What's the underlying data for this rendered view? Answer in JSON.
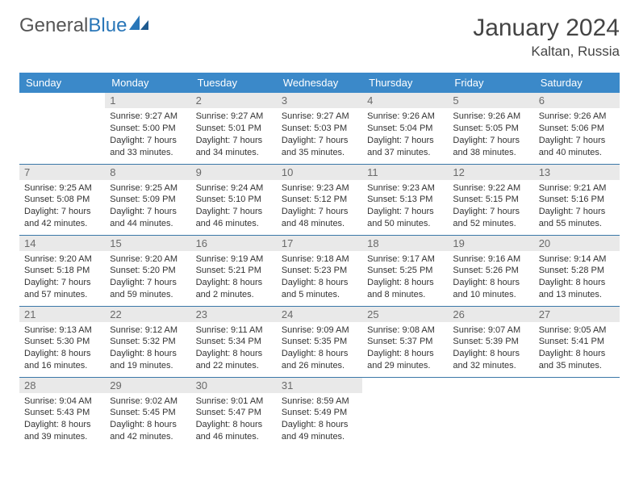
{
  "brand": {
    "part1": "General",
    "part2": "Blue"
  },
  "title": "January 2024",
  "subtitle": "Kaltan, Russia",
  "colors": {
    "header_bg": "#3b89c9",
    "header_text": "#ffffff",
    "daynum_bg": "#e9e9e9",
    "daynum_text": "#6a6a6a",
    "row_border": "#3b78a8",
    "brand_gray": "#555555",
    "brand_blue": "#2976b8",
    "body_text": "#333333",
    "page_bg": "#ffffff"
  },
  "typography": {
    "title_fontsize": 30,
    "subtitle_fontsize": 17,
    "dayheader_fontsize": 13,
    "daynum_fontsize": 13,
    "cell_fontsize": 11
  },
  "dayHeaders": [
    "Sunday",
    "Monday",
    "Tuesday",
    "Wednesday",
    "Thursday",
    "Friday",
    "Saturday"
  ],
  "weeks": [
    [
      {
        "empty": true
      },
      {
        "num": "1",
        "sunrise": "Sunrise: 9:27 AM",
        "sunset": "Sunset: 5:00 PM",
        "daylight1": "Daylight: 7 hours",
        "daylight2": "and 33 minutes."
      },
      {
        "num": "2",
        "sunrise": "Sunrise: 9:27 AM",
        "sunset": "Sunset: 5:01 PM",
        "daylight1": "Daylight: 7 hours",
        "daylight2": "and 34 minutes."
      },
      {
        "num": "3",
        "sunrise": "Sunrise: 9:27 AM",
        "sunset": "Sunset: 5:03 PM",
        "daylight1": "Daylight: 7 hours",
        "daylight2": "and 35 minutes."
      },
      {
        "num": "4",
        "sunrise": "Sunrise: 9:26 AM",
        "sunset": "Sunset: 5:04 PM",
        "daylight1": "Daylight: 7 hours",
        "daylight2": "and 37 minutes."
      },
      {
        "num": "5",
        "sunrise": "Sunrise: 9:26 AM",
        "sunset": "Sunset: 5:05 PM",
        "daylight1": "Daylight: 7 hours",
        "daylight2": "and 38 minutes."
      },
      {
        "num": "6",
        "sunrise": "Sunrise: 9:26 AM",
        "sunset": "Sunset: 5:06 PM",
        "daylight1": "Daylight: 7 hours",
        "daylight2": "and 40 minutes."
      }
    ],
    [
      {
        "num": "7",
        "sunrise": "Sunrise: 9:25 AM",
        "sunset": "Sunset: 5:08 PM",
        "daylight1": "Daylight: 7 hours",
        "daylight2": "and 42 minutes."
      },
      {
        "num": "8",
        "sunrise": "Sunrise: 9:25 AM",
        "sunset": "Sunset: 5:09 PM",
        "daylight1": "Daylight: 7 hours",
        "daylight2": "and 44 minutes."
      },
      {
        "num": "9",
        "sunrise": "Sunrise: 9:24 AM",
        "sunset": "Sunset: 5:10 PM",
        "daylight1": "Daylight: 7 hours",
        "daylight2": "and 46 minutes."
      },
      {
        "num": "10",
        "sunrise": "Sunrise: 9:23 AM",
        "sunset": "Sunset: 5:12 PM",
        "daylight1": "Daylight: 7 hours",
        "daylight2": "and 48 minutes."
      },
      {
        "num": "11",
        "sunrise": "Sunrise: 9:23 AM",
        "sunset": "Sunset: 5:13 PM",
        "daylight1": "Daylight: 7 hours",
        "daylight2": "and 50 minutes."
      },
      {
        "num": "12",
        "sunrise": "Sunrise: 9:22 AM",
        "sunset": "Sunset: 5:15 PM",
        "daylight1": "Daylight: 7 hours",
        "daylight2": "and 52 minutes."
      },
      {
        "num": "13",
        "sunrise": "Sunrise: 9:21 AM",
        "sunset": "Sunset: 5:16 PM",
        "daylight1": "Daylight: 7 hours",
        "daylight2": "and 55 minutes."
      }
    ],
    [
      {
        "num": "14",
        "sunrise": "Sunrise: 9:20 AM",
        "sunset": "Sunset: 5:18 PM",
        "daylight1": "Daylight: 7 hours",
        "daylight2": "and 57 minutes."
      },
      {
        "num": "15",
        "sunrise": "Sunrise: 9:20 AM",
        "sunset": "Sunset: 5:20 PM",
        "daylight1": "Daylight: 7 hours",
        "daylight2": "and 59 minutes."
      },
      {
        "num": "16",
        "sunrise": "Sunrise: 9:19 AM",
        "sunset": "Sunset: 5:21 PM",
        "daylight1": "Daylight: 8 hours",
        "daylight2": "and 2 minutes."
      },
      {
        "num": "17",
        "sunrise": "Sunrise: 9:18 AM",
        "sunset": "Sunset: 5:23 PM",
        "daylight1": "Daylight: 8 hours",
        "daylight2": "and 5 minutes."
      },
      {
        "num": "18",
        "sunrise": "Sunrise: 9:17 AM",
        "sunset": "Sunset: 5:25 PM",
        "daylight1": "Daylight: 8 hours",
        "daylight2": "and 8 minutes."
      },
      {
        "num": "19",
        "sunrise": "Sunrise: 9:16 AM",
        "sunset": "Sunset: 5:26 PM",
        "daylight1": "Daylight: 8 hours",
        "daylight2": "and 10 minutes."
      },
      {
        "num": "20",
        "sunrise": "Sunrise: 9:14 AM",
        "sunset": "Sunset: 5:28 PM",
        "daylight1": "Daylight: 8 hours",
        "daylight2": "and 13 minutes."
      }
    ],
    [
      {
        "num": "21",
        "sunrise": "Sunrise: 9:13 AM",
        "sunset": "Sunset: 5:30 PM",
        "daylight1": "Daylight: 8 hours",
        "daylight2": "and 16 minutes."
      },
      {
        "num": "22",
        "sunrise": "Sunrise: 9:12 AM",
        "sunset": "Sunset: 5:32 PM",
        "daylight1": "Daylight: 8 hours",
        "daylight2": "and 19 minutes."
      },
      {
        "num": "23",
        "sunrise": "Sunrise: 9:11 AM",
        "sunset": "Sunset: 5:34 PM",
        "daylight1": "Daylight: 8 hours",
        "daylight2": "and 22 minutes."
      },
      {
        "num": "24",
        "sunrise": "Sunrise: 9:09 AM",
        "sunset": "Sunset: 5:35 PM",
        "daylight1": "Daylight: 8 hours",
        "daylight2": "and 26 minutes."
      },
      {
        "num": "25",
        "sunrise": "Sunrise: 9:08 AM",
        "sunset": "Sunset: 5:37 PM",
        "daylight1": "Daylight: 8 hours",
        "daylight2": "and 29 minutes."
      },
      {
        "num": "26",
        "sunrise": "Sunrise: 9:07 AM",
        "sunset": "Sunset: 5:39 PM",
        "daylight1": "Daylight: 8 hours",
        "daylight2": "and 32 minutes."
      },
      {
        "num": "27",
        "sunrise": "Sunrise: 9:05 AM",
        "sunset": "Sunset: 5:41 PM",
        "daylight1": "Daylight: 8 hours",
        "daylight2": "and 35 minutes."
      }
    ],
    [
      {
        "num": "28",
        "sunrise": "Sunrise: 9:04 AM",
        "sunset": "Sunset: 5:43 PM",
        "daylight1": "Daylight: 8 hours",
        "daylight2": "and 39 minutes."
      },
      {
        "num": "29",
        "sunrise": "Sunrise: 9:02 AM",
        "sunset": "Sunset: 5:45 PM",
        "daylight1": "Daylight: 8 hours",
        "daylight2": "and 42 minutes."
      },
      {
        "num": "30",
        "sunrise": "Sunrise: 9:01 AM",
        "sunset": "Sunset: 5:47 PM",
        "daylight1": "Daylight: 8 hours",
        "daylight2": "and 46 minutes."
      },
      {
        "num": "31",
        "sunrise": "Sunrise: 8:59 AM",
        "sunset": "Sunset: 5:49 PM",
        "daylight1": "Daylight: 8 hours",
        "daylight2": "and 49 minutes."
      },
      {
        "empty": true
      },
      {
        "empty": true
      },
      {
        "empty": true
      }
    ]
  ]
}
